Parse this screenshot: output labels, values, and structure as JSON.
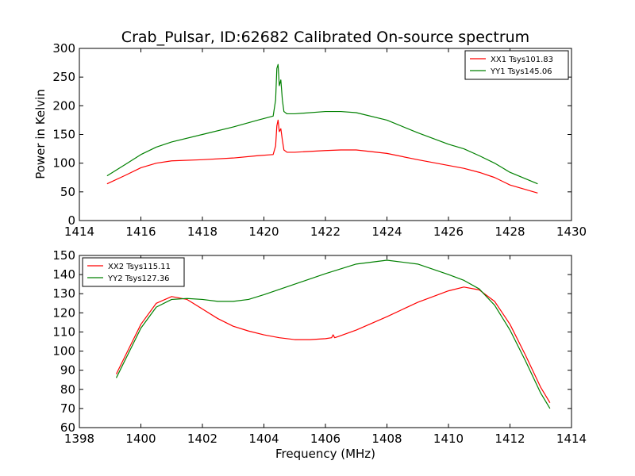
{
  "figure": {
    "title": "Crab_Pulsar, ID:62682 Calibrated On-source spectrum",
    "ylabel": "Power in Kelvin",
    "xlabel": "Frequency (MHz)"
  },
  "chart_data": [
    {
      "type": "line",
      "title": "Crab_Pulsar, ID:62682 Calibrated On-source spectrum",
      "xlabel": "",
      "ylabel": "Power in Kelvin",
      "xlim": [
        1414,
        1430
      ],
      "ylim": [
        0,
        300
      ],
      "xticks": [
        1414,
        1416,
        1418,
        1420,
        1422,
        1424,
        1426,
        1428,
        1430
      ],
      "yticks": [
        0,
        50,
        100,
        150,
        200,
        250,
        300
      ],
      "grid": false,
      "legend": "top-right",
      "series": [
        {
          "name": "XX1 Tsys101.83",
          "color": "#ff0000",
          "x": [
            1414.9,
            1415.5,
            1416.0,
            1416.5,
            1417.0,
            1418.0,
            1419.0,
            1419.8,
            1420.3,
            1420.38,
            1420.42,
            1420.46,
            1420.5,
            1420.55,
            1420.6,
            1420.65,
            1420.75,
            1421.0,
            1422.0,
            1422.5,
            1423.0,
            1424.0,
            1425.0,
            1426.0,
            1426.5,
            1427.0,
            1427.5,
            1428.0,
            1428.9
          ],
          "y": [
            64,
            79,
            92,
            100,
            104,
            106,
            109,
            113,
            115,
            130,
            165,
            175,
            155,
            160,
            140,
            123,
            119,
            119,
            122,
            123,
            123,
            117,
            106,
            96,
            91,
            84,
            75,
            62,
            48
          ]
        },
        {
          "name": "YY1 Tsys145.06",
          "color": "#008000",
          "x": [
            1414.9,
            1415.5,
            1416.0,
            1416.5,
            1417.0,
            1418.0,
            1419.0,
            1419.8,
            1420.3,
            1420.38,
            1420.42,
            1420.46,
            1420.5,
            1420.55,
            1420.6,
            1420.65,
            1420.75,
            1421.0,
            1422.0,
            1422.5,
            1423.0,
            1424.0,
            1425.0,
            1426.0,
            1426.5,
            1427.0,
            1427.5,
            1428.0,
            1428.9
          ],
          "y": [
            78,
            98,
            115,
            128,
            137,
            150,
            163,
            175,
            182,
            210,
            265,
            272,
            235,
            245,
            210,
            190,
            186,
            186,
            190,
            190,
            188,
            175,
            153,
            133,
            125,
            113,
            100,
            84,
            64
          ]
        }
      ]
    },
    {
      "type": "line",
      "title": "",
      "xlabel": "Frequency (MHz)",
      "ylabel": "",
      "xlim": [
        1398,
        1414
      ],
      "ylim": [
        60,
        150
      ],
      "xticks": [
        1398,
        1400,
        1402,
        1404,
        1406,
        1408,
        1410,
        1412,
        1414
      ],
      "yticks": [
        60,
        70,
        80,
        90,
        100,
        110,
        120,
        130,
        140,
        150
      ],
      "grid": false,
      "legend": "top-left",
      "series": [
        {
          "name": "XX2 Tsys115.11",
          "color": "#ff0000",
          "x": [
            1399.2,
            1399.6,
            1400.0,
            1400.5,
            1401.0,
            1401.5,
            1402.0,
            1402.5,
            1403.0,
            1403.5,
            1404.0,
            1404.5,
            1405.0,
            1405.5,
            1406.0,
            1406.2,
            1406.25,
            1406.3,
            1406.4,
            1407.0,
            1408.0,
            1409.0,
            1410.0,
            1410.5,
            1411.0,
            1411.5,
            1412.0,
            1412.5,
            1413.0,
            1413.3
          ],
          "y": [
            88,
            101,
            114,
            125,
            128.5,
            127,
            122,
            117,
            113,
            110.5,
            108.5,
            107,
            106,
            106,
            106.5,
            107,
            108.5,
            107,
            107.5,
            111,
            118,
            125.5,
            131.5,
            133.5,
            132,
            126,
            114,
            98,
            81,
            73
          ]
        },
        {
          "name": "YY2 Tsys127.36",
          "color": "#008000",
          "x": [
            1399.2,
            1399.6,
            1400.0,
            1400.5,
            1401.0,
            1401.5,
            1402.0,
            1402.5,
            1403.0,
            1403.5,
            1404.0,
            1405.0,
            1406.0,
            1407.0,
            1408.0,
            1409.0,
            1410.0,
            1410.5,
            1411.0,
            1411.5,
            1412.0,
            1412.5,
            1413.0,
            1413.3
          ],
          "y": [
            86,
            99,
            112,
            123,
            127,
            127.5,
            127,
            126,
            126,
            127,
            129.5,
            135,
            140.5,
            145.5,
            147.5,
            145.5,
            140,
            137,
            132.5,
            124,
            111,
            95,
            78,
            70
          ]
        }
      ]
    }
  ]
}
